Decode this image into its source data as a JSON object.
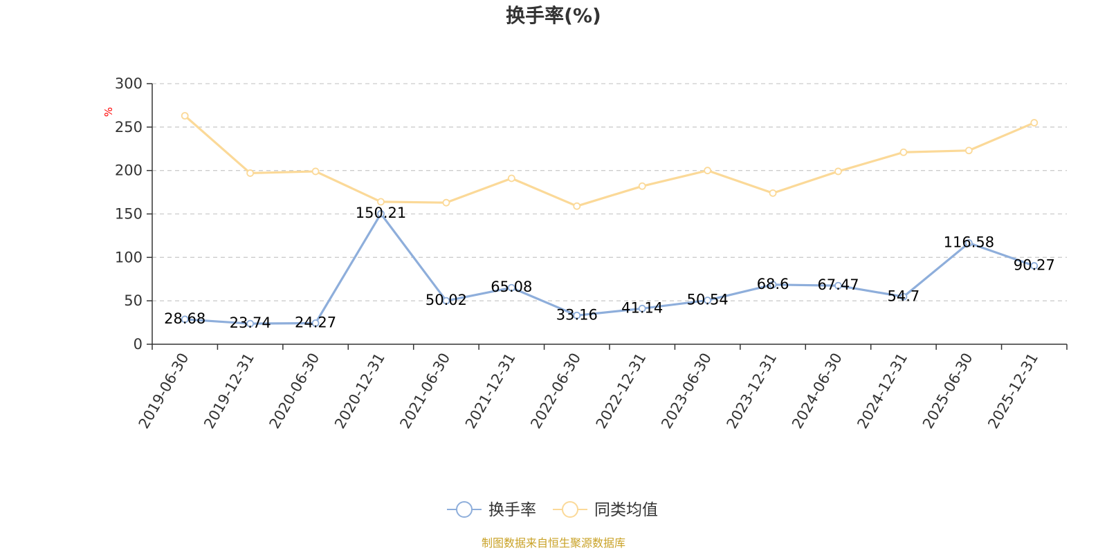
{
  "chart_data": {
    "type": "line",
    "title": "换手率(%)",
    "unit_label": "%",
    "categories": [
      "2019-06-30",
      "2019-12-31",
      "2020-06-30",
      "2020-12-31",
      "2021-06-30",
      "2021-12-31",
      "2022-06-30",
      "2022-12-31",
      "2023-06-30",
      "2023-12-31",
      "2024-06-30",
      "2024-12-31",
      "2025-06-30",
      "2025-12-31"
    ],
    "ylim": [
      0,
      300
    ],
    "yticks": [
      0,
      50,
      100,
      150,
      200,
      250,
      300
    ],
    "grid": true,
    "legend_position": "bottom",
    "series": [
      {
        "name": "换手率",
        "color": "#8eaedb",
        "show_labels": true,
        "values": [
          28.68,
          23.74,
          24.27,
          150.21,
          50.02,
          65.08,
          33.16,
          41.14,
          50.54,
          68.6,
          67.47,
          54.7,
          116.58,
          90.27
        ],
        "labels": [
          "28.68",
          "23.74",
          "24.27",
          "150.21",
          "50.02",
          "65.08",
          "33.16",
          "41.14",
          "50.54",
          "68.6",
          "67.47",
          "54.7",
          "116.58",
          "90.27"
        ]
      },
      {
        "name": "同类均值",
        "color": "#fbd998",
        "show_labels": false,
        "values": [
          263,
          197,
          199,
          164,
          163,
          191,
          159,
          182,
          200,
          174,
          199,
          221,
          223,
          255
        ]
      }
    ]
  },
  "source_text": "制图数据来自恒生聚源数据库",
  "colors": {
    "axis": "#333333",
    "grid": "#cccccc",
    "unit": "#ff0000",
    "source": "#c9a227"
  }
}
